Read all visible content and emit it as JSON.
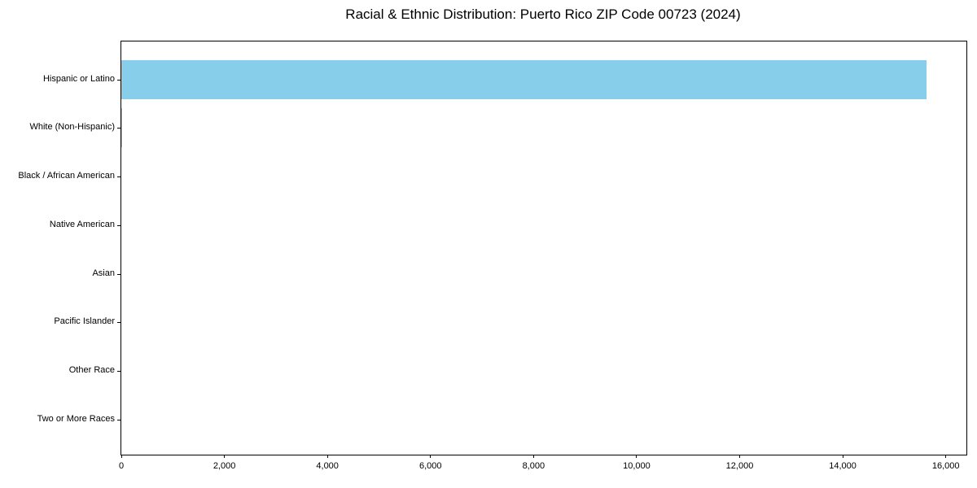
{
  "figure": {
    "background_color": "#ffffff",
    "axis_color": "#000000",
    "text_color": "#000000"
  },
  "chart_data": {
    "type": "bar",
    "orientation": "horizontal",
    "title": "Racial & Ethnic Distribution: Puerto Rico ZIP Code 00723 (2024)",
    "categories": [
      "Hispanic or Latino",
      "White (Non-Hispanic)",
      "Black / African American",
      "Native American",
      "Asian",
      "Pacific Islander",
      "Other Race",
      "Two or More Races"
    ],
    "values": [
      15620,
      20,
      0,
      0,
      0,
      0,
      0,
      0
    ],
    "bar_color": "#87CEEB",
    "xlabel": "",
    "ylabel": "",
    "xlim": [
      0,
      16400
    ],
    "x_ticks": [
      0,
      2000,
      4000,
      6000,
      8000,
      10000,
      12000,
      14000,
      16000
    ],
    "x_tick_labels": [
      "0",
      "2,000",
      "4,000",
      "6,000",
      "8,000",
      "10,000",
      "12,000",
      "14,000",
      "16,000"
    ],
    "grid": false,
    "legend_position": "none"
  }
}
